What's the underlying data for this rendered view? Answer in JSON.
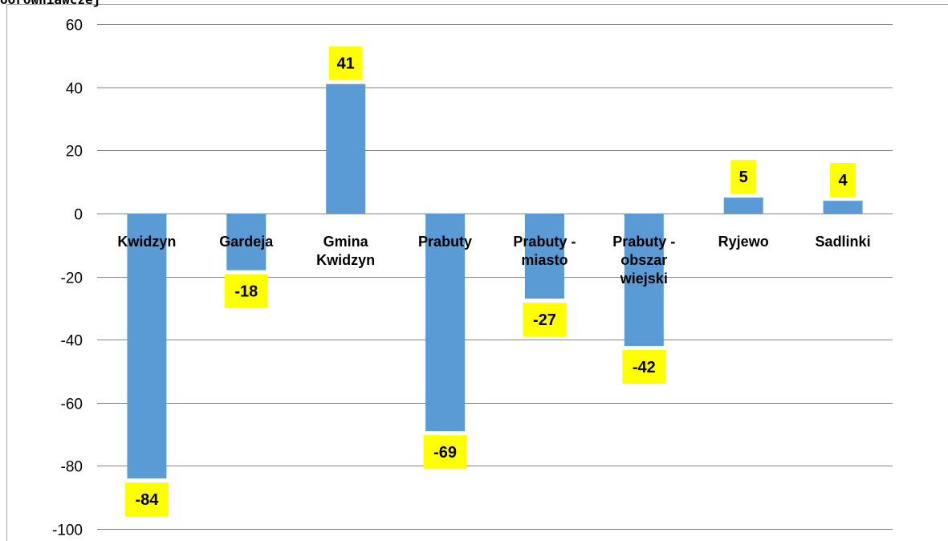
{
  "title": "oorowniawczej",
  "chart_data": {
    "type": "bar",
    "title": "oorowniawczej",
    "categories": [
      [
        "Kwidzyn"
      ],
      [
        "Gardeja"
      ],
      [
        "Gmina",
        "Kwidzyn"
      ],
      [
        "Prabuty"
      ],
      [
        "Prabuty -",
        "miasto"
      ],
      [
        "Prabuty -",
        "obszar",
        "wiejski"
      ],
      [
        "Ryjewo"
      ],
      [
        "Sadlinki"
      ]
    ],
    "values": [
      -84,
      -18,
      41,
      -69,
      -27,
      -42,
      5,
      4
    ],
    "data_labels": [
      "-84",
      "-18",
      "41",
      "-69",
      "-27",
      "-42",
      "5",
      "4"
    ],
    "ylim": [
      -100,
      60
    ],
    "yticks": [
      "60",
      "40",
      "20",
      "0",
      "-20",
      "-40",
      "-60",
      "-80",
      "-100"
    ],
    "grid": true,
    "bar_color": "#5b9bd5",
    "label_bg": "#ffff00",
    "gridline_color": "#868686",
    "xlabel": "",
    "ylabel": ""
  }
}
